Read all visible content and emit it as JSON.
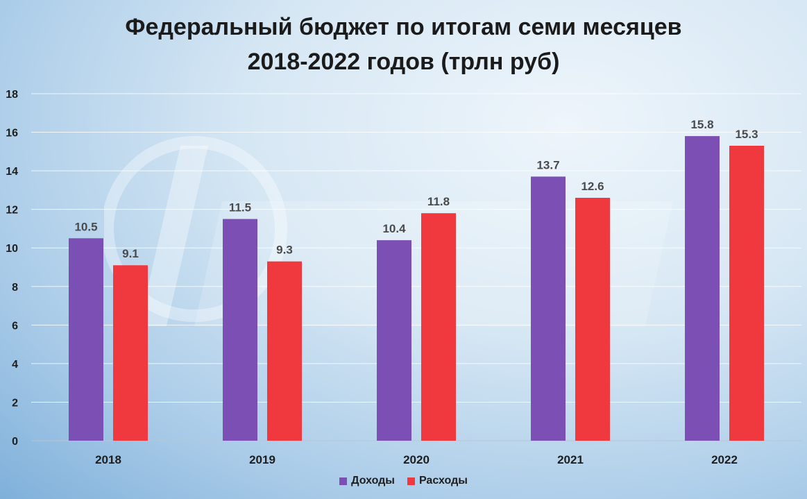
{
  "chart_data": {
    "type": "bar",
    "title_line1": "Федеральный бюджет по итогам семи месяцев",
    "title_line2": "2018-2022 годов (трлн руб)",
    "categories": [
      "2018",
      "2019",
      "2020",
      "2021",
      "2022"
    ],
    "series": [
      {
        "name": "Доходы",
        "color": "#7b4fb3",
        "values": [
          10.5,
          11.5,
          10.4,
          13.7,
          15.8
        ]
      },
      {
        "name": "Расходы",
        "color": "#f0383f",
        "values": [
          9.1,
          9.3,
          11.8,
          12.6,
          15.3
        ]
      }
    ],
    "ylim": [
      0,
      18
    ],
    "yticks": [
      0,
      2,
      4,
      6,
      8,
      10,
      12,
      14,
      16,
      18
    ],
    "grid": true,
    "legend_position": "bottom"
  },
  "watermark_icon": "reactor-logo-icon"
}
